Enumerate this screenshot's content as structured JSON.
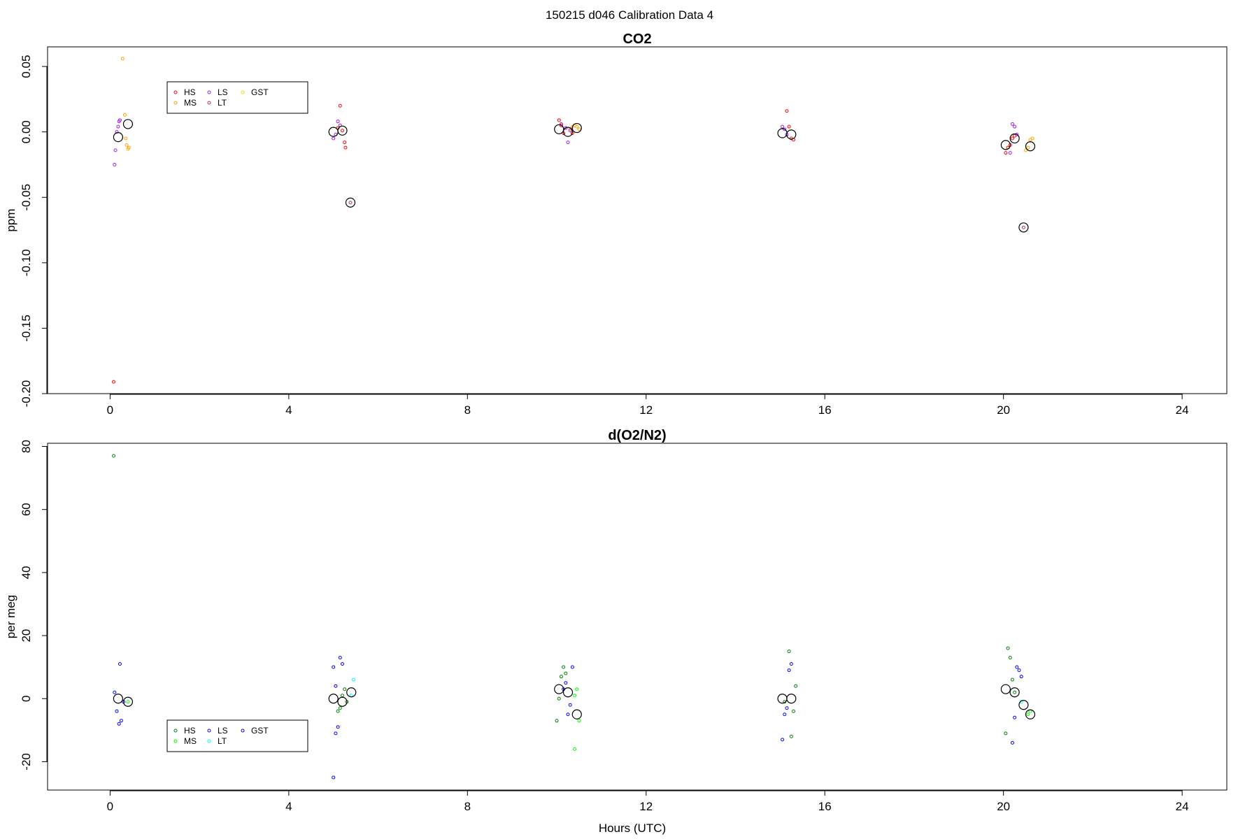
{
  "main_title": "150215   d046   Calibration Data 4",
  "xlabel": "Hours (UTC)",
  "chart_data": [
    {
      "type": "scatter",
      "title": "CO2",
      "ylabel": "ppm",
      "xlim": [
        -1.4,
        25.0
      ],
      "ylim": [
        -0.2,
        0.065
      ],
      "xticks": [
        0,
        4,
        8,
        12,
        16,
        20,
        24
      ],
      "yticks": [
        0.05,
        0.0,
        -0.05,
        -0.1,
        -0.15,
        -0.2
      ],
      "ytick_labels": [
        "0.05",
        "0.00",
        "-0.05",
        "-0.10",
        "-0.15",
        "-0.20"
      ],
      "legend": {
        "position": "top-left",
        "entries": [
          {
            "name": "HS",
            "color": "#ff0000"
          },
          {
            "name": "MS",
            "color": "#ffa500"
          },
          {
            "name": "LS",
            "color": "#a020f0"
          },
          {
            "name": "LT",
            "color": "#b03060"
          },
          {
            "name": "GST",
            "color": "#ffd700"
          }
        ]
      },
      "series": [
        {
          "name": "HS",
          "color": "#ff0000",
          "points": [
            [
              0.08,
              -0.191
            ],
            [
              5.15,
              0.02
            ],
            [
              5.1,
              0.003
            ],
            [
              5.2,
              0.001
            ],
            [
              5.25,
              -0.008
            ],
            [
              5.27,
              -0.012
            ],
            [
              10.05,
              0.009
            ],
            [
              10.1,
              0.005
            ],
            [
              10.15,
              -0.001
            ],
            [
              10.2,
              0.003
            ],
            [
              10.35,
              -0.001
            ],
            [
              15.15,
              0.016
            ],
            [
              15.2,
              0.004
            ],
            [
              15.25,
              -0.005
            ],
            [
              15.3,
              -0.006
            ],
            [
              20.05,
              -0.016
            ],
            [
              20.1,
              -0.012
            ],
            [
              20.15,
              -0.01
            ],
            [
              20.2,
              -0.005
            ],
            [
              20.25,
              -0.003
            ]
          ]
        },
        {
          "name": "MS",
          "color": "#ffa500",
          "points": [
            [
              0.28,
              0.056
            ],
            [
              0.33,
              0.013
            ],
            [
              0.35,
              -0.005
            ],
            [
              0.37,
              -0.01
            ],
            [
              0.4,
              -0.013
            ],
            [
              0.42,
              -0.012
            ],
            [
              10.3,
              0.002
            ],
            [
              10.35,
              0.004
            ],
            [
              10.4,
              0.005
            ],
            [
              10.45,
              0.004
            ],
            [
              10.5,
              0.002
            ],
            [
              20.5,
              -0.014
            ],
            [
              20.55,
              -0.012
            ],
            [
              20.6,
              -0.006
            ],
            [
              20.65,
              -0.005
            ]
          ]
        },
        {
          "name": "LS",
          "color": "#a020f0",
          "points": [
            [
              0.1,
              -0.025
            ],
            [
              0.12,
              -0.014
            ],
            [
              0.15,
              0.0
            ],
            [
              0.18,
              0.004
            ],
            [
              0.2,
              0.008
            ],
            [
              0.22,
              0.009
            ],
            [
              5.0,
              -0.005
            ],
            [
              5.05,
              -0.002
            ],
            [
              5.1,
              0.008
            ],
            [
              5.15,
              0.005
            ],
            [
              10.1,
              0.006
            ],
            [
              10.2,
              0.003
            ],
            [
              10.25,
              -0.008
            ],
            [
              10.3,
              0.001
            ],
            [
              15.05,
              0.004
            ],
            [
              15.1,
              0.002
            ],
            [
              15.15,
              -0.002
            ],
            [
              20.15,
              -0.016
            ],
            [
              20.2,
              0.006
            ],
            [
              20.25,
              0.004
            ],
            [
              20.3,
              -0.002
            ]
          ]
        },
        {
          "name": "LT",
          "color": "#b03060",
          "points": [
            [
              5.38,
              -0.054
            ],
            [
              20.45,
              -0.073
            ]
          ]
        },
        {
          "name": "GST",
          "color": "#ffd700",
          "points": []
        },
        {
          "name": "mean",
          "color": "#000000",
          "large": true,
          "points": [
            [
              0.18,
              -0.004
            ],
            [
              0.4,
              0.006
            ],
            [
              5.0,
              0.0
            ],
            [
              5.2,
              0.001
            ],
            [
              5.38,
              -0.054
            ],
            [
              10.05,
              0.002
            ],
            [
              10.25,
              0.0
            ],
            [
              10.45,
              0.003
            ],
            [
              15.05,
              -0.001
            ],
            [
              15.25,
              -0.002
            ],
            [
              20.05,
              -0.01
            ],
            [
              20.25,
              -0.005
            ],
            [
              20.45,
              -0.073
            ],
            [
              20.6,
              -0.011
            ]
          ]
        }
      ]
    },
    {
      "type": "scatter",
      "title": "d(O2/N2)",
      "ylabel": "per meg",
      "xlim": [
        -1.4,
        25.0
      ],
      "ylim": [
        -29,
        81
      ],
      "xticks": [
        0,
        4,
        8,
        12,
        16,
        20,
        24
      ],
      "yticks": [
        80,
        60,
        40,
        20,
        0,
        -20
      ],
      "ytick_labels": [
        "80",
        "60",
        "40",
        "20",
        "0",
        "-20"
      ],
      "legend": {
        "position": "bottom-left",
        "entries": [
          {
            "name": "HS",
            "color": "#008000"
          },
          {
            "name": "MS",
            "color": "#00ff00"
          },
          {
            "name": "LS",
            "color": "#0000ff"
          },
          {
            "name": "LT",
            "color": "#00ffff"
          },
          {
            "name": "GST",
            "color": "#0000cd"
          }
        ]
      },
      "series": [
        {
          "name": "HS",
          "color": "#008000",
          "points": [
            [
              0.08,
              77
            ],
            [
              5.1,
              -4
            ],
            [
              5.15,
              -3
            ],
            [
              5.2,
              1
            ],
            [
              5.25,
              3
            ],
            [
              5.3,
              -1
            ],
            [
              10.0,
              -7
            ],
            [
              10.05,
              0
            ],
            [
              10.1,
              7
            ],
            [
              10.15,
              10
            ],
            [
              10.2,
              8
            ],
            [
              15.1,
              -1
            ],
            [
              15.2,
              15
            ],
            [
              15.25,
              -12
            ],
            [
              15.3,
              -4
            ],
            [
              15.35,
              4
            ],
            [
              20.05,
              -11
            ],
            [
              20.1,
              16
            ],
            [
              20.15,
              13
            ],
            [
              20.2,
              6
            ],
            [
              20.25,
              2
            ]
          ]
        },
        {
          "name": "MS",
          "color": "#00ff00",
          "points": [
            [
              0.4,
              -1
            ],
            [
              10.4,
              -16
            ],
            [
              10.45,
              3
            ],
            [
              10.5,
              -7
            ],
            [
              10.4,
              1
            ],
            [
              20.55,
              -5
            ],
            [
              20.6,
              -4
            ]
          ]
        },
        {
          "name": "LS",
          "color": "#0000ff",
          "points": [
            [
              0.1,
              2
            ],
            [
              0.15,
              -4
            ],
            [
              0.2,
              -8
            ],
            [
              0.25,
              -7
            ],
            [
              0.22,
              11
            ],
            [
              0.3,
              -1
            ],
            [
              5.0,
              10
            ],
            [
              5.05,
              -11
            ],
            [
              5.1,
              -9
            ],
            [
              5.15,
              13
            ],
            [
              5.2,
              11
            ],
            [
              5.05,
              4
            ],
            [
              5.0,
              -25
            ],
            [
              10.15,
              3
            ],
            [
              10.2,
              5
            ],
            [
              10.25,
              -5
            ],
            [
              10.3,
              -2
            ],
            [
              10.35,
              10
            ],
            [
              15.05,
              -13
            ],
            [
              15.1,
              -5
            ],
            [
              15.15,
              -3
            ],
            [
              15.2,
              9
            ],
            [
              15.25,
              11
            ],
            [
              20.2,
              -14
            ],
            [
              20.25,
              -6
            ],
            [
              20.3,
              10
            ],
            [
              20.35,
              9
            ],
            [
              20.4,
              7
            ]
          ]
        },
        {
          "name": "LT",
          "color": "#00ffff",
          "points": [
            [
              5.4,
              1
            ],
            [
              5.45,
              6
            ],
            [
              20.4,
              -1
            ]
          ]
        },
        {
          "name": "GST",
          "color": "#0000cd",
          "points": []
        },
        {
          "name": "mean",
          "color": "#000000",
          "large": true,
          "points": [
            [
              0.18,
              0
            ],
            [
              0.4,
              -1
            ],
            [
              5.0,
              0
            ],
            [
              5.2,
              -1
            ],
            [
              5.4,
              2
            ],
            [
              10.05,
              3
            ],
            [
              10.25,
              2
            ],
            [
              10.45,
              -5
            ],
            [
              15.05,
              0
            ],
            [
              15.25,
              0
            ],
            [
              20.05,
              3
            ],
            [
              20.25,
              2
            ],
            [
              20.45,
              -2
            ],
            [
              20.6,
              -5
            ]
          ]
        }
      ]
    }
  ]
}
